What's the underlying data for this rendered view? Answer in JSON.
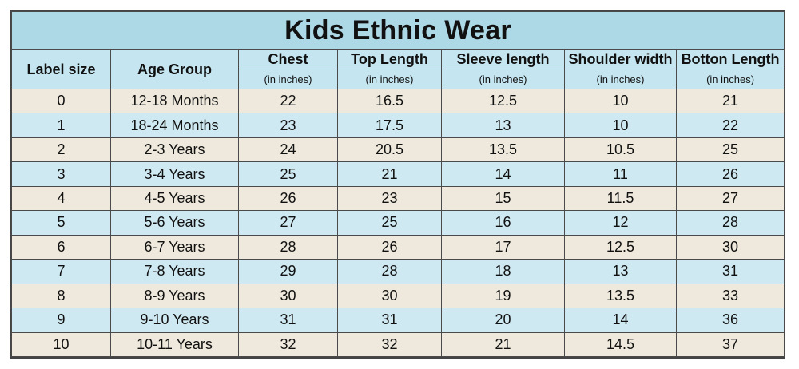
{
  "title": "Kids Ethnic Wear",
  "headers": {
    "label_size": "Label size",
    "age_group": "Age Group",
    "chest": "Chest",
    "top_length": "Top Length",
    "sleeve_length": "Sleeve length",
    "shoulder_width": "Shoulder width",
    "bottom_length": "Botton Length"
  },
  "unit_label": "(in inches)",
  "rows": [
    {
      "label": "0",
      "age": "12-18 Months",
      "chest": "22",
      "top": "16.5",
      "sleeve": "12.5",
      "shoulder": "10",
      "bottom": "21"
    },
    {
      "label": "1",
      "age": "18-24 Months",
      "chest": "23",
      "top": "17.5",
      "sleeve": "13",
      "shoulder": "10",
      "bottom": "22"
    },
    {
      "label": "2",
      "age": "2-3 Years",
      "chest": "24",
      "top": "20.5",
      "sleeve": "13.5",
      "shoulder": "10.5",
      "bottom": "25"
    },
    {
      "label": "3",
      "age": "3-4 Years",
      "chest": "25",
      "top": "21",
      "sleeve": "14",
      "shoulder": "11",
      "bottom": "26"
    },
    {
      "label": "4",
      "age": "4-5 Years",
      "chest": "26",
      "top": "23",
      "sleeve": "15",
      "shoulder": "11.5",
      "bottom": "27"
    },
    {
      "label": "5",
      "age": "5-6 Years",
      "chest": "27",
      "top": "25",
      "sleeve": "16",
      "shoulder": "12",
      "bottom": "28"
    },
    {
      "label": "6",
      "age": "6-7 Years",
      "chest": "28",
      "top": "26",
      "sleeve": "17",
      "shoulder": "12.5",
      "bottom": "30"
    },
    {
      "label": "7",
      "age": "7-8 Years",
      "chest": "29",
      "top": "28",
      "sleeve": "18",
      "shoulder": "13",
      "bottom": "31"
    },
    {
      "label": "8",
      "age": "8-9 Years",
      "chest": "30",
      "top": "30",
      "sleeve": "19",
      "shoulder": "13.5",
      "bottom": "33"
    },
    {
      "label": "9",
      "age": "9-10 Years",
      "chest": "31",
      "top": "31",
      "sleeve": "20",
      "shoulder": "14",
      "bottom": "36"
    },
    {
      "label": "10",
      "age": "10-11 Years",
      "chest": "32",
      "top": "32",
      "sleeve": "21",
      "shoulder": "14.5",
      "bottom": "37"
    }
  ],
  "colors": {
    "title_bg": "#add8e6",
    "header_bg": "#c5e6f1",
    "row_beige": "#eee9dc",
    "row_blue": "#cfe9f2"
  }
}
